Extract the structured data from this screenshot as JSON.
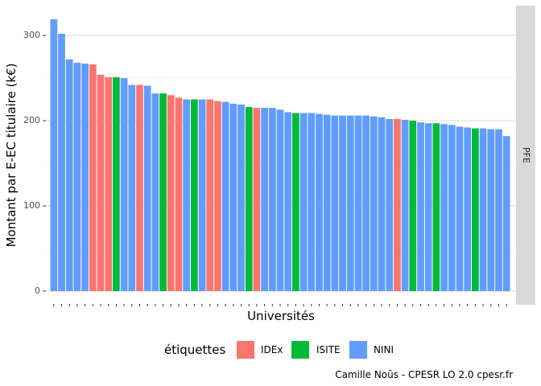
{
  "chart_data": {
    "type": "bar",
    "xlabel": "Universités",
    "ylabel": "Montant par E-EC titulaire (k€)",
    "ylim": [
      0,
      320
    ],
    "yticks": [
      0,
      100,
      200,
      300
    ],
    "grid": true,
    "facet_label": "PFE",
    "legend": {
      "title": "étiquettes",
      "position": "bottom",
      "entries": [
        {
          "label": "IDEx",
          "color": "#F8766D"
        },
        {
          "label": "ISITE",
          "color": "#00BA38"
        },
        {
          "label": "NINI",
          "color": "#619CFF"
        }
      ]
    },
    "caption": "Camille Noûs - CPESR LO 2.0 cpesr.fr",
    "bars": [
      {
        "value": 319,
        "group": "NINI"
      },
      {
        "value": 302,
        "group": "NINI"
      },
      {
        "value": 272,
        "group": "NINI"
      },
      {
        "value": 268,
        "group": "NINI"
      },
      {
        "value": 267,
        "group": "NINI"
      },
      {
        "value": 266,
        "group": "IDEx"
      },
      {
        "value": 254,
        "group": "IDEx"
      },
      {
        "value": 251,
        "group": "IDEx"
      },
      {
        "value": 251,
        "group": "ISITE"
      },
      {
        "value": 250,
        "group": "NINI"
      },
      {
        "value": 242,
        "group": "NINI"
      },
      {
        "value": 242,
        "group": "IDEx"
      },
      {
        "value": 241,
        "group": "NINI"
      },
      {
        "value": 232,
        "group": "NINI"
      },
      {
        "value": 232,
        "group": "ISITE"
      },
      {
        "value": 230,
        "group": "IDEx"
      },
      {
        "value": 227,
        "group": "IDEx"
      },
      {
        "value": 225,
        "group": "NINI"
      },
      {
        "value": 225,
        "group": "ISITE"
      },
      {
        "value": 225,
        "group": "NINI"
      },
      {
        "value": 225,
        "group": "IDEx"
      },
      {
        "value": 223,
        "group": "IDEx"
      },
      {
        "value": 222,
        "group": "NINI"
      },
      {
        "value": 220,
        "group": "NINI"
      },
      {
        "value": 219,
        "group": "NINI"
      },
      {
        "value": 216,
        "group": "ISITE"
      },
      {
        "value": 215,
        "group": "IDEx"
      },
      {
        "value": 215,
        "group": "NINI"
      },
      {
        "value": 215,
        "group": "NINI"
      },
      {
        "value": 213,
        "group": "NINI"
      },
      {
        "value": 210,
        "group": "NINI"
      },
      {
        "value": 209,
        "group": "ISITE"
      },
      {
        "value": 209,
        "group": "NINI"
      },
      {
        "value": 209,
        "group": "NINI"
      },
      {
        "value": 208,
        "group": "NINI"
      },
      {
        "value": 207,
        "group": "NINI"
      },
      {
        "value": 206,
        "group": "NINI"
      },
      {
        "value": 206,
        "group": "NINI"
      },
      {
        "value": 206,
        "group": "NINI"
      },
      {
        "value": 206,
        "group": "NINI"
      },
      {
        "value": 206,
        "group": "NINI"
      },
      {
        "value": 205,
        "group": "NINI"
      },
      {
        "value": 204,
        "group": "NINI"
      },
      {
        "value": 202,
        "group": "NINI"
      },
      {
        "value": 202,
        "group": "IDEx"
      },
      {
        "value": 201,
        "group": "NINI"
      },
      {
        "value": 200,
        "group": "ISITE"
      },
      {
        "value": 198,
        "group": "NINI"
      },
      {
        "value": 197,
        "group": "NINI"
      },
      {
        "value": 197,
        "group": "ISITE"
      },
      {
        "value": 196,
        "group": "NINI"
      },
      {
        "value": 195,
        "group": "NINI"
      },
      {
        "value": 193,
        "group": "NINI"
      },
      {
        "value": 192,
        "group": "NINI"
      },
      {
        "value": 191,
        "group": "ISITE"
      },
      {
        "value": 191,
        "group": "NINI"
      },
      {
        "value": 190,
        "group": "NINI"
      },
      {
        "value": 190,
        "group": "NINI"
      },
      {
        "value": 182,
        "group": "NINI"
      }
    ]
  }
}
